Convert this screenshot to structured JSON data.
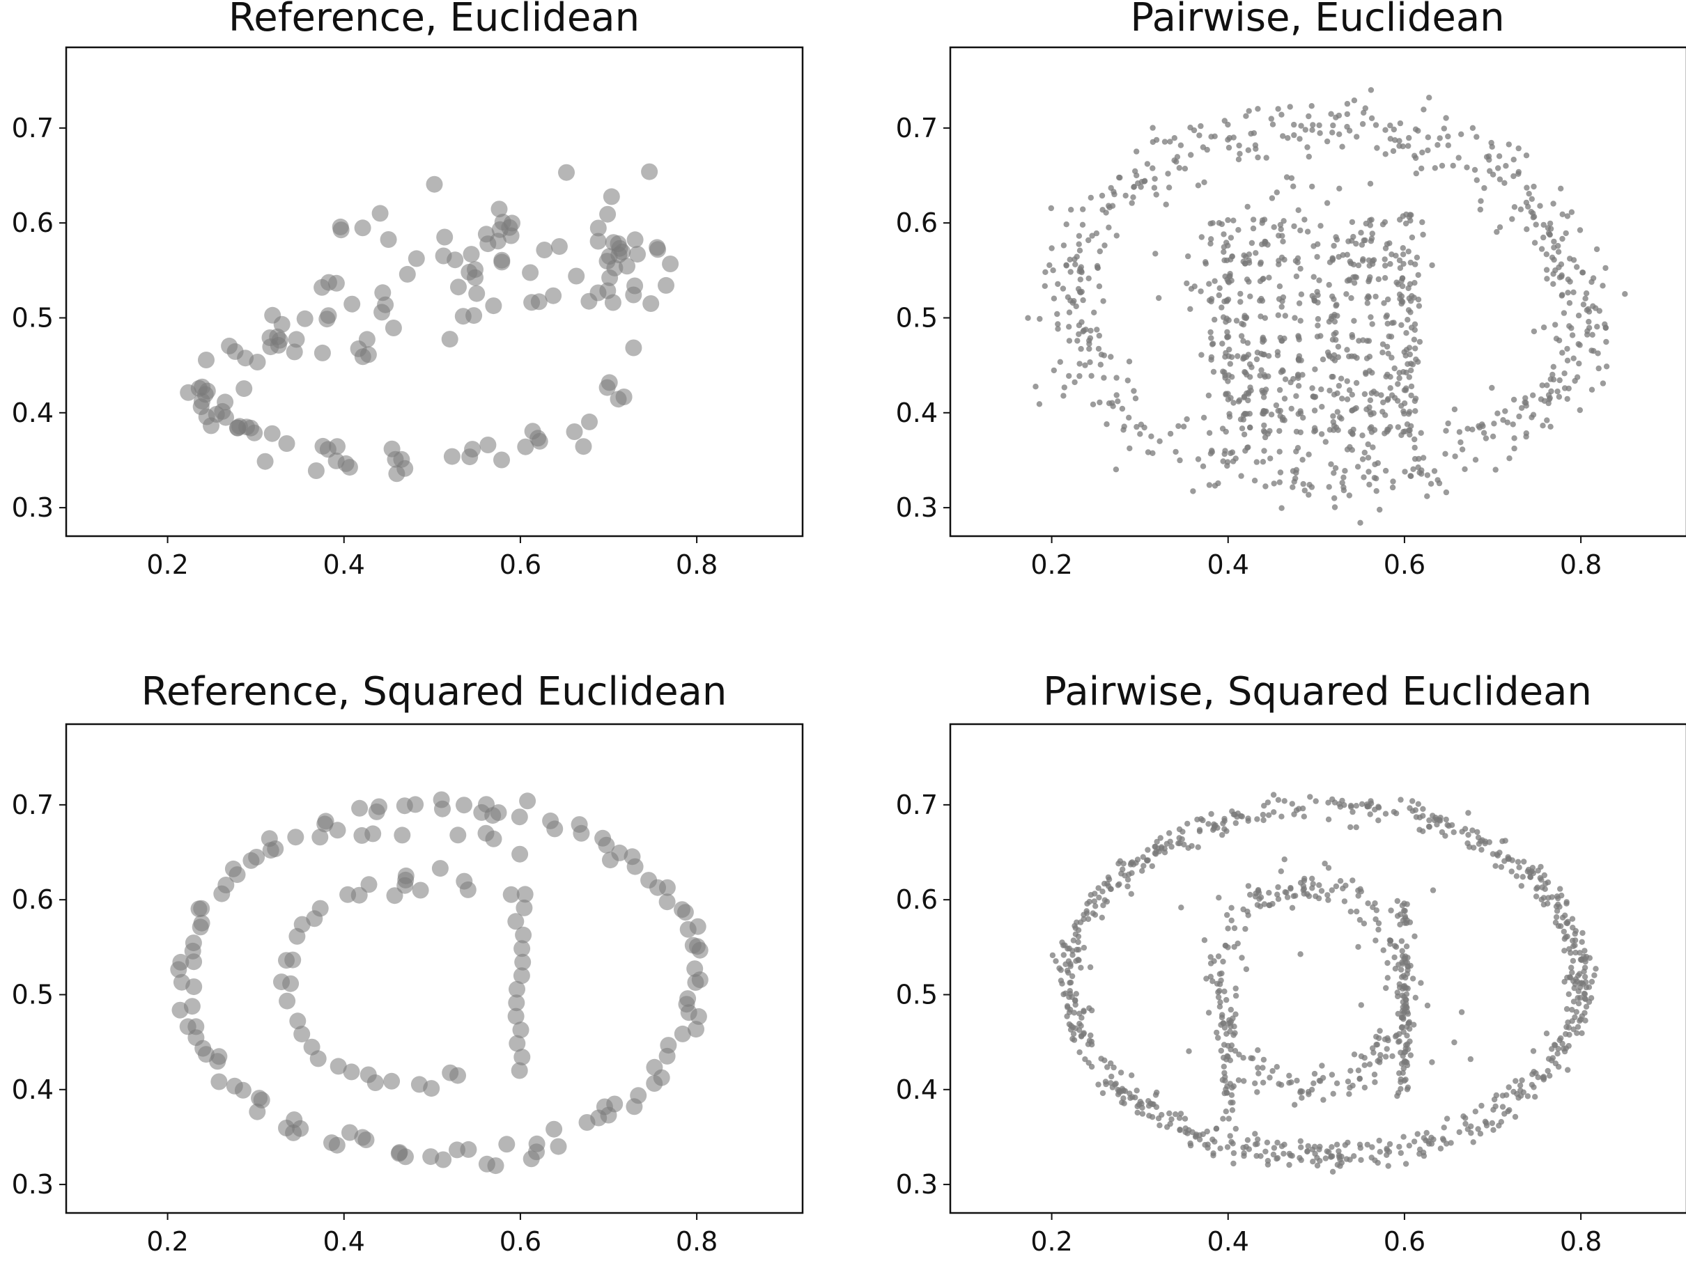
{
  "figure_colors": {
    "point": "#7a7a7a",
    "axis": "#111111",
    "background": "#ffffff"
  },
  "chart_data": [
    {
      "type": "scatter",
      "title": "Reference, Euclidean",
      "xlabel": "",
      "ylabel": "",
      "xlim": [
        0.085,
        0.92
      ],
      "ylim": [
        0.27,
        0.785
      ],
      "x_ticks": [
        0.2,
        0.4,
        0.6,
        0.8
      ],
      "x_tick_labels": [
        "0.2",
        "0.4",
        "0.6",
        "0.8"
      ],
      "y_ticks": [
        0.3,
        0.4,
        0.5,
        0.6,
        0.7
      ],
      "y_tick_labels": [
        "0.3",
        "0.4",
        "0.5",
        "0.6",
        "0.7"
      ],
      "marker": "large",
      "generator": "reference-euclidean",
      "n_points": 150
    },
    {
      "type": "scatter",
      "title": "Pairwise, Euclidean",
      "xlabel": "",
      "ylabel": "",
      "xlim": [
        0.085,
        0.92
      ],
      "ylim": [
        0.27,
        0.785
      ],
      "x_ticks": [
        0.2,
        0.4,
        0.6,
        0.8
      ],
      "x_tick_labels": [
        "0.2",
        "0.4",
        "0.6",
        "0.8"
      ],
      "y_ticks": [
        0.3,
        0.4,
        0.5,
        0.6,
        0.7
      ],
      "y_tick_labels": [
        "0.3",
        "0.4",
        "0.5",
        "0.6",
        "0.7"
      ],
      "marker": "small",
      "generator": "pairwise-euclidean",
      "n_points": 1200
    },
    {
      "type": "scatter",
      "title": "Reference, Squared Euclidean",
      "xlabel": "",
      "ylabel": "",
      "xlim": [
        0.085,
        0.92
      ],
      "ylim": [
        0.27,
        0.785
      ],
      "x_ticks": [
        0.2,
        0.4,
        0.6,
        0.8
      ],
      "x_tick_labels": [
        "0.2",
        "0.4",
        "0.6",
        "0.8"
      ],
      "y_ticks": [
        0.3,
        0.4,
        0.5,
        0.6,
        0.7
      ],
      "y_tick_labels": [
        "0.3",
        "0.4",
        "0.5",
        "0.6",
        "0.7"
      ],
      "marker": "large",
      "generator": "reference-squared",
      "n_points": 175
    },
    {
      "type": "scatter",
      "title": "Pairwise, Squared Euclidean",
      "xlabel": "",
      "ylabel": "",
      "xlim": [
        0.085,
        0.92
      ],
      "ylim": [
        0.27,
        0.785
      ],
      "x_ticks": [
        0.2,
        0.4,
        0.6,
        0.8
      ],
      "x_tick_labels": [
        "0.2",
        "0.4",
        "0.6",
        "0.8"
      ],
      "y_ticks": [
        0.3,
        0.4,
        0.5,
        0.6,
        0.7
      ],
      "y_tick_labels": [
        "0.3",
        "0.4",
        "0.5",
        "0.6",
        "0.7"
      ],
      "marker": "small",
      "generator": "pairwise-squared",
      "n_points": 1100
    }
  ]
}
